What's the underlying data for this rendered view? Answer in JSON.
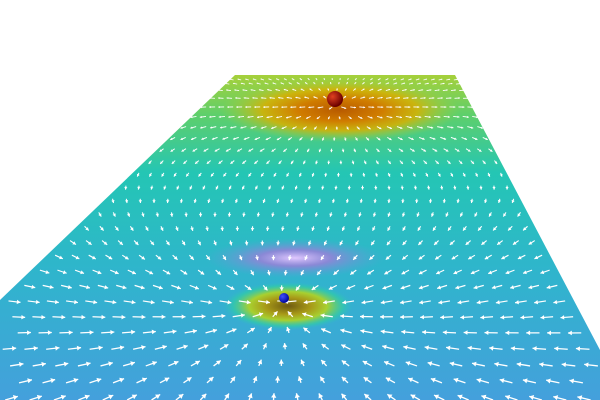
{
  "scene": {
    "background": "#ffffff",
    "surface_colors": {
      "far": "#9ccf3a",
      "mid": "#2cc7b8",
      "near": "#3fa0d8",
      "positive_well": "#c86a00",
      "negative_well_rim": "#9b7fd6",
      "negative_well": "#a8a020"
    },
    "charges": [
      {
        "name": "positive-charge",
        "color": "#8b0000"
      },
      {
        "name": "negative-charge",
        "color": "#0a10d0"
      }
    ],
    "arrow_color": "#ffffff"
  }
}
